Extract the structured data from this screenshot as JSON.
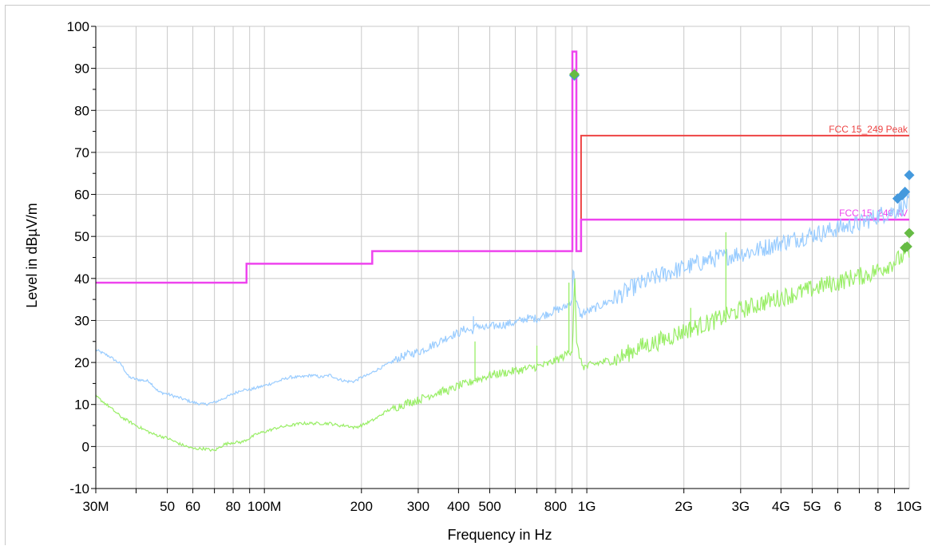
{
  "chart_data": {
    "type": "line",
    "xlabel": "Frequency in Hz",
    "ylabel": "Level in dBµV/m",
    "xscale": "log",
    "xlim": [
      30000000,
      10000000000
    ],
    "ylim": [
      -10,
      100
    ],
    "grid": true,
    "y_ticks": [
      -10,
      0,
      10,
      20,
      30,
      40,
      50,
      60,
      70,
      80,
      90,
      100
    ],
    "x_tick_labels": [
      {
        "value": 30000000,
        "label": "30M"
      },
      {
        "value": 50000000,
        "label": "50"
      },
      {
        "value": 60000000,
        "label": "60"
      },
      {
        "value": 80000000,
        "label": "80"
      },
      {
        "value": 100000000,
        "label": "100M"
      },
      {
        "value": 200000000,
        "label": "200"
      },
      {
        "value": 300000000,
        "label": "300"
      },
      {
        "value": 400000000,
        "label": "400"
      },
      {
        "value": 500000000,
        "label": "500"
      },
      {
        "value": 800000000,
        "label": "800"
      },
      {
        "value": 1000000000,
        "label": "1G"
      },
      {
        "value": 2000000000,
        "label": "2G"
      },
      {
        "value": 3000000000,
        "label": "3G"
      },
      {
        "value": 4000000000,
        "label": "4G"
      },
      {
        "value": 5000000000,
        "label": "5G"
      },
      {
        "value": 6000000000,
        "label": "6"
      },
      {
        "value": 8000000000,
        "label": "8"
      },
      {
        "value": 10000000000,
        "label": "10G"
      }
    ],
    "limits": [
      {
        "name": "FCC 15_249 Peak",
        "color": "#ee4444",
        "x": [
          960000000,
          960000000,
          10000000000
        ],
        "y": [
          46.5,
          74,
          74
        ]
      },
      {
        "name": "FCC 15_249 AV",
        "color": "#ee44ee",
        "x": [
          30000000,
          88000000,
          88000000,
          216000000,
          216000000,
          902000000,
          902000000,
          928000000,
          928000000,
          960000000,
          960000000,
          10000000000
        ],
        "y": [
          39,
          39,
          43.5,
          43.5,
          46.5,
          46.5,
          94,
          94,
          46.5,
          46.5,
          54,
          54
        ]
      }
    ],
    "series": [
      {
        "color": "#99ccff",
        "x": [
          30000000,
          33000000,
          36000000,
          38000000,
          40000000,
          44000000,
          47000000,
          50000000,
          55000000,
          60000000,
          65000000,
          70000000,
          75000000,
          80000000,
          85000000,
          90000000,
          95000000,
          100000000,
          110000000,
          120000000,
          130000000,
          140000000,
          150000000,
          160000000,
          170000000,
          180000000,
          190000000,
          200000000,
          210000000,
          220000000,
          240000000,
          260000000,
          280000000,
          300000000,
          320000000,
          350000000,
          380000000,
          400000000,
          420000000,
          440000000,
          460000000,
          480000000,
          500000000,
          550000000,
          600000000,
          650000000,
          700000000,
          750000000,
          800000000,
          850000000,
          880000000,
          900000000,
          910000000,
          915000000,
          920000000,
          925000000,
          930000000,
          940000000,
          960000000,
          980000000,
          1000000000,
          1100000000,
          1200000000,
          1300000000,
          1400000000,
          1500000000,
          1600000000,
          1800000000,
          2000000000,
          2200000000,
          2400000000,
          2600000000,
          2800000000,
          3000000000,
          3300000000,
          3600000000,
          4000000000,
          4500000000,
          5000000000,
          5500000000,
          6000000000,
          6500000000,
          7000000000,
          7500000000,
          8000000000,
          8500000000,
          9000000000,
          9500000000,
          10000000000
        ],
        "y": [
          23,
          21.5,
          19.5,
          16.5,
          16,
          15.5,
          13,
          12.5,
          11.5,
          10.5,
          10,
          10.5,
          11.5,
          12.5,
          13.5,
          13.5,
          14,
          14.5,
          15.5,
          16.5,
          16.5,
          17,
          16.5,
          17,
          16,
          15.5,
          15.5,
          16.5,
          17,
          18,
          19.5,
          21,
          22,
          22.5,
          23.5,
          25,
          26.5,
          27,
          28,
          27.5,
          29,
          28,
          28.5,
          29,
          29.5,
          30.5,
          30.5,
          31.5,
          32.5,
          33,
          34,
          35,
          45,
          38,
          36,
          34,
          34,
          33,
          31,
          32,
          32,
          33.5,
          35,
          36.5,
          38,
          39,
          40,
          41.5,
          42.5,
          43.5,
          44.5,
          45,
          45.5,
          46,
          46.5,
          47.5,
          48.5,
          49.5,
          50.5,
          51,
          52,
          52.5,
          53,
          54,
          55,
          55.5,
          56,
          57,
          58
        ]
      },
      {
        "color": "#99ee66",
        "x": [
          30000000,
          33000000,
          36000000,
          40000000,
          45000000,
          50000000,
          55000000,
          60000000,
          65000000,
          70000000,
          75000000,
          80000000,
          85000000,
          90000000,
          95000000,
          100000000,
          110000000,
          120000000,
          130000000,
          140000000,
          150000000,
          160000000,
          170000000,
          180000000,
          190000000,
          200000000,
          220000000,
          240000000,
          260000000,
          280000000,
          300000000,
          320000000,
          350000000,
          380000000,
          400000000,
          430000000,
          450000000,
          460000000,
          480000000,
          500000000,
          550000000,
          600000000,
          650000000,
          700000000,
          750000000,
          800000000,
          850000000,
          880000000,
          900000000,
          910000000,
          915000000,
          920000000,
          925000000,
          930000000,
          940000000,
          960000000,
          980000000,
          1000000000,
          1100000000,
          1200000000,
          1300000000,
          1400000000,
          1500000000,
          1600000000,
          1800000000,
          2000000000,
          2200000000,
          2400000000,
          2600000000,
          2800000000,
          3000000000,
          3300000000,
          3600000000,
          4000000000,
          4500000000,
          5000000000,
          5500000000,
          6000000000,
          6500000000,
          7000000000,
          7500000000,
          8000000000,
          8500000000,
          9000000000,
          9500000000,
          10000000000
        ],
        "y": [
          12,
          9.5,
          7,
          5,
          3,
          2,
          0.5,
          -0.5,
          -0.5,
          -1,
          0.5,
          1,
          1,
          2,
          3,
          3.5,
          4.5,
          5,
          5.5,
          5.5,
          5.5,
          5.5,
          5,
          5,
          4.5,
          5,
          6.5,
          8.5,
          9.5,
          10.5,
          11,
          12,
          13,
          13.5,
          14.5,
          15,
          16,
          16,
          16.5,
          17,
          17.5,
          18,
          18.5,
          19,
          19.5,
          20.5,
          21.5,
          22.5,
          23,
          30,
          44,
          38,
          30,
          24,
          23,
          20,
          19,
          19,
          20,
          20.5,
          21.5,
          23,
          24,
          24.5,
          26,
          27.5,
          28.5,
          29.5,
          30.5,
          31.5,
          32.5,
          33.5,
          34.5,
          35.5,
          36.5,
          37.5,
          38.5,
          39,
          40,
          40.5,
          41,
          42,
          43,
          44,
          45,
          46
        ]
      }
    ],
    "spikes": [
      {
        "color": "#99ee66",
        "x": 450000000,
        "y": 25
      },
      {
        "color": "#99ee66",
        "x": 700000000,
        "y": 24
      },
      {
        "color": "#99ee66",
        "x": 880000000,
        "y": 39
      },
      {
        "color": "#99ee66",
        "x": 1600000000,
        "y": 25
      },
      {
        "color": "#99ee66",
        "x": 2100000000,
        "y": 33
      },
      {
        "color": "#99ee66",
        "x": 2700000000,
        "y": 51
      },
      {
        "color": "#99ccff",
        "x": 445000000,
        "y": 31
      },
      {
        "color": "#99ccff",
        "x": 750000000,
        "y": 32
      }
    ],
    "markers": [
      {
        "color": "#4499dd",
        "x": 915000000,
        "y": 88.3
      },
      {
        "color": "#66bb44",
        "x": 915000000,
        "y": 88.6
      },
      {
        "color": "#4499dd",
        "x": 9200000000,
        "y": 59
      },
      {
        "color": "#4499dd",
        "x": 9500000000,
        "y": 59.8
      },
      {
        "color": "#4499dd",
        "x": 9700000000,
        "y": 60.6
      },
      {
        "color": "#4499dd",
        "x": 10000000000,
        "y": 64.6
      },
      {
        "color": "#66bb44",
        "x": 10000000000,
        "y": 50.8
      },
      {
        "color": "#66bb44",
        "x": 9700000000,
        "y": 47.3
      },
      {
        "color": "#66bb44",
        "x": 9850000000,
        "y": 47.6
      }
    ]
  }
}
